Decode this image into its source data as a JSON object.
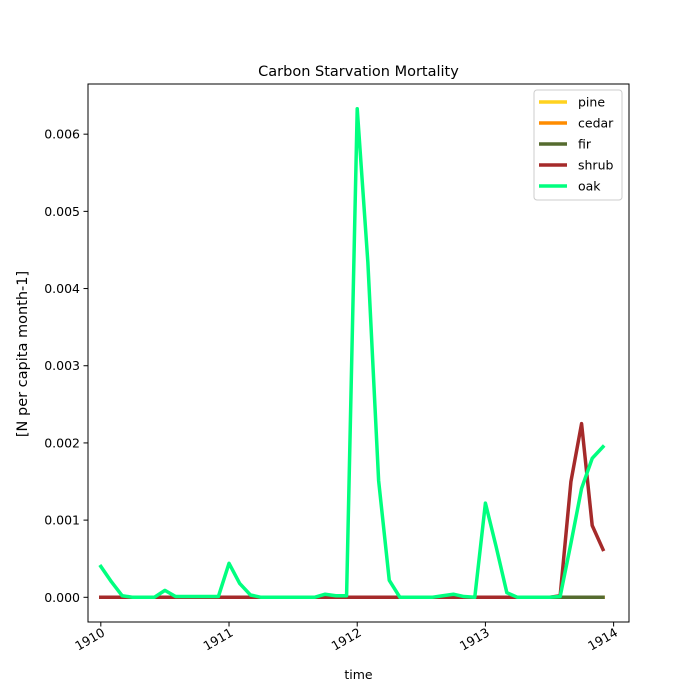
{
  "chart_data": {
    "type": "line",
    "title": "Carbon Starvation Mortality",
    "xlabel": "time",
    "ylabel": "[N per capita month-1]",
    "xlim": [
      1909.9,
      1914.12
    ],
    "ylim": [
      -0.00032,
      0.00665
    ],
    "x_ticks": [
      1910,
      1911,
      1912,
      1913,
      1914
    ],
    "x_tick_labels": [
      "1910",
      "1911",
      "1912",
      "1913",
      "1914"
    ],
    "y_ticks": [
      0,
      0.001,
      0.002,
      0.003,
      0.004,
      0.005,
      0.006
    ],
    "y_tick_labels": [
      "0.000",
      "0.001",
      "0.002",
      "0.003",
      "0.004",
      "0.005",
      "0.006"
    ],
    "grid": false,
    "legend_position": "top-right",
    "x": [
      1910.0,
      1910.083,
      1910.167,
      1910.25,
      1910.333,
      1910.417,
      1910.5,
      1910.583,
      1910.667,
      1910.75,
      1910.833,
      1910.917,
      1911.0,
      1911.083,
      1911.167,
      1911.25,
      1911.333,
      1911.417,
      1911.5,
      1911.583,
      1911.667,
      1911.75,
      1911.833,
      1911.917,
      1912.0,
      1912.083,
      1912.167,
      1912.25,
      1912.333,
      1912.417,
      1912.5,
      1912.583,
      1912.667,
      1912.75,
      1912.833,
      1912.917,
      1913.0,
      1913.083,
      1913.167,
      1913.25,
      1913.333,
      1913.417,
      1913.5,
      1913.583,
      1913.667,
      1913.75,
      1913.833,
      1913.917
    ],
    "series": [
      {
        "name": "pine",
        "color": "#FFD21F",
        "values": [
          0,
          0,
          0,
          0,
          0,
          0,
          0,
          0,
          0,
          0,
          0,
          0,
          0,
          0,
          0,
          0,
          0,
          0,
          0,
          0,
          0,
          0,
          0,
          0,
          0,
          0,
          0,
          0,
          0,
          0,
          0,
          0,
          0,
          0,
          0,
          0,
          0,
          0,
          0,
          0,
          0,
          0,
          0,
          0,
          0,
          0,
          0,
          0
        ]
      },
      {
        "name": "cedar",
        "color": "#FF8C00",
        "values": [
          0,
          0,
          0,
          0,
          0,
          0,
          0,
          0,
          0,
          0,
          0,
          0,
          0,
          0,
          0,
          0,
          0,
          0,
          0,
          0,
          0,
          0,
          0,
          0,
          0,
          0,
          0,
          0,
          0,
          0,
          0,
          0,
          0,
          0,
          0,
          0,
          0,
          0,
          0,
          0,
          0,
          0,
          0,
          0,
          0,
          0,
          0,
          0
        ]
      },
      {
        "name": "fir",
        "color": "#556B2F",
        "values": [
          0,
          0,
          0,
          0,
          0,
          0,
          0,
          0,
          0,
          0,
          0,
          0,
          0,
          0,
          0,
          0,
          0,
          0,
          0,
          0,
          0,
          0,
          0,
          0,
          0,
          0,
          0,
          0,
          0,
          0,
          0,
          0,
          0,
          0,
          0,
          0,
          0,
          0,
          0,
          0,
          0,
          0,
          0,
          0,
          0,
          0,
          0,
          0
        ]
      },
      {
        "name": "shrub",
        "color": "#A52A2A",
        "values": [
          0,
          0,
          0,
          0,
          0,
          0,
          0,
          0,
          0,
          0,
          0,
          0,
          0,
          0,
          0,
          0,
          0,
          0,
          0,
          0,
          0,
          0,
          0,
          0,
          0,
          0,
          0,
          0,
          0,
          0,
          0,
          0,
          0,
          0,
          0,
          0,
          0,
          0,
          0,
          0,
          0,
          0,
          0,
          2e-05,
          0.0015,
          0.00225,
          0.00093,
          0.00062
        ]
      },
      {
        "name": "oak",
        "color": "#00FF7F",
        "values": [
          0.0004,
          0.0002,
          2e-05,
          0,
          0,
          0,
          9e-05,
          1e-05,
          1e-05,
          1e-05,
          1e-05,
          1e-05,
          0.00044,
          0.00018,
          3e-05,
          0,
          0,
          0,
          0,
          0,
          0,
          4e-05,
          2e-05,
          2e-05,
          0.00633,
          0.00434,
          0.00151,
          0.00022,
          0,
          0,
          0,
          0,
          2e-05,
          4e-05,
          1e-05,
          0,
          0.00122,
          0.00066,
          6e-05,
          0,
          0,
          0,
          0,
          1e-05,
          0.0007,
          0.00141,
          0.0018,
          0.00195
        ]
      }
    ]
  }
}
